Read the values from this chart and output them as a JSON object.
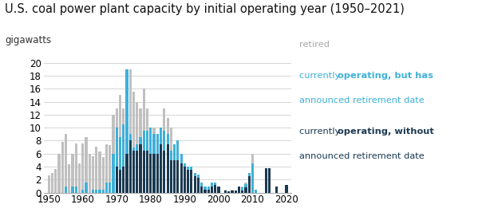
{
  "title": "U.S. coal power plant capacity by initial operating year (1950–2021)",
  "ylabel": "gigawatts",
  "years": [
    1950,
    1951,
    1952,
    1953,
    1954,
    1955,
    1956,
    1957,
    1958,
    1959,
    1960,
    1961,
    1962,
    1963,
    1964,
    1965,
    1966,
    1967,
    1968,
    1969,
    1970,
    1971,
    1972,
    1973,
    1974,
    1975,
    1976,
    1977,
    1978,
    1979,
    1980,
    1981,
    1982,
    1983,
    1984,
    1985,
    1986,
    1987,
    1988,
    1989,
    1990,
    1991,
    1992,
    1993,
    1994,
    1995,
    1996,
    1997,
    1998,
    1999,
    2000,
    2001,
    2002,
    2003,
    2004,
    2005,
    2006,
    2007,
    2008,
    2009,
    2010,
    2011,
    2012,
    2013,
    2014,
    2015,
    2016,
    2017,
    2018,
    2019,
    2020
  ],
  "dark_navy": [
    0.0,
    0.0,
    0.0,
    0.0,
    0.0,
    0.0,
    0.0,
    0.0,
    0.0,
    0.0,
    0.0,
    0.0,
    0.0,
    0.0,
    0.0,
    0.0,
    0.0,
    0.0,
    0.0,
    0.0,
    4.0,
    3.5,
    4.0,
    6.0,
    8.0,
    6.5,
    6.5,
    7.5,
    6.5,
    6.5,
    6.0,
    6.0,
    6.0,
    7.5,
    6.5,
    7.5,
    5.0,
    5.0,
    5.0,
    4.5,
    4.0,
    3.5,
    3.5,
    2.5,
    2.3,
    1.0,
    0.5,
    0.5,
    1.0,
    1.2,
    1.0,
    0.0,
    0.3,
    0.2,
    0.3,
    0.3,
    1.0,
    0.3,
    0.8,
    2.5,
    0.0,
    0.0,
    0.0,
    0.0,
    3.8,
    3.8,
    0.0,
    1.0,
    0.0,
    0.0,
    1.2
  ],
  "cyan_announced": [
    0.0,
    0.0,
    0.0,
    0.0,
    0.0,
    1.0,
    0.0,
    1.0,
    1.0,
    0.0,
    0.5,
    1.5,
    0.0,
    0.5,
    0.5,
    0.5,
    0.5,
    1.5,
    1.5,
    6.0,
    6.0,
    5.0,
    6.5,
    13.0,
    1.0,
    0.5,
    1.0,
    1.0,
    3.0,
    3.0,
    4.0,
    3.0,
    3.0,
    2.5,
    3.0,
    1.5,
    1.5,
    2.5,
    3.0,
    1.5,
    0.5,
    0.5,
    0.5,
    0.5,
    0.5,
    0.5,
    0.5,
    0.5,
    0.5,
    0.3,
    0.0,
    0.0,
    0.0,
    0.0,
    0.0,
    0.0,
    0.0,
    0.5,
    0.5,
    0.5,
    4.5,
    0.5,
    0.0,
    0.0,
    0.0,
    0.0,
    0.0,
    0.0,
    0.0,
    0.0,
    0.0
  ],
  "gray_retired": [
    2.7,
    3.0,
    3.7,
    6.0,
    7.8,
    8.0,
    4.4,
    5.0,
    6.6,
    4.5,
    7.1,
    7.0,
    6.0,
    5.1,
    6.6,
    5.8,
    5.0,
    5.9,
    5.8,
    6.0,
    3.0,
    6.5,
    2.5,
    0.0,
    10.0,
    8.5,
    6.5,
    4.5,
    6.5,
    3.5,
    0.0,
    1.0,
    0.0,
    0.0,
    3.5,
    2.5,
    3.5,
    0.0,
    0.0,
    0.0,
    0.0,
    0.0,
    0.0,
    0.0,
    0.0,
    0.0,
    0.0,
    0.0,
    0.0,
    0.0,
    0.0,
    0.0,
    0.2,
    0.0,
    0.1,
    0.0,
    0.0,
    0.2,
    0.2,
    0.0,
    1.5,
    0.0,
    0.0,
    0.0,
    0.0,
    0.0,
    0.0,
    0.0,
    0.0,
    0.0,
    0.0
  ],
  "color_retired": "#c0c0c0",
  "color_announced": "#3fb0d8",
  "color_operating": "#1b3a52",
  "ylim": [
    0,
    20
  ],
  "yticks": [
    0,
    2,
    4,
    6,
    8,
    10,
    12,
    14,
    16,
    18,
    20
  ],
  "xticks": [
    1950,
    1960,
    1970,
    1980,
    1990,
    2000,
    2010,
    2020
  ],
  "background_color": "#ffffff",
  "grid_color": "#d5d5d5",
  "title_fontsize": 10.5,
  "tick_fontsize": 8.5
}
